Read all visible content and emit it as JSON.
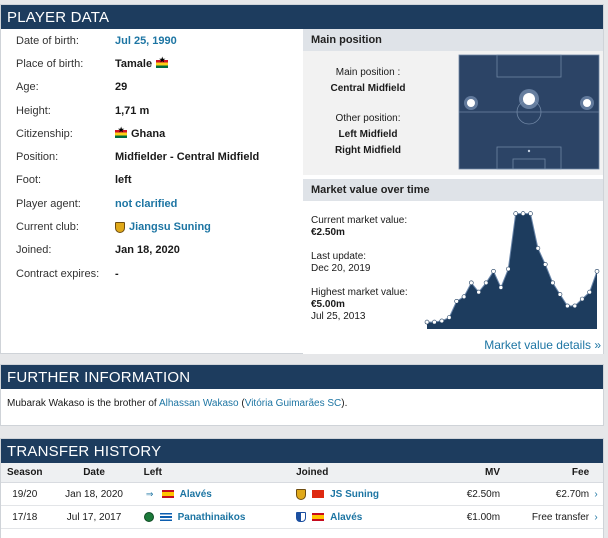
{
  "player_data": {
    "title": "PLAYER DATA",
    "rows": [
      {
        "label": "Date of birth:",
        "value": "Jul 25, 1990"
      },
      {
        "label": "Place of birth:",
        "value": "Tamale"
      },
      {
        "label": "Age:",
        "value": "29"
      },
      {
        "label": "Height:",
        "value": "1,71 m"
      },
      {
        "label": "Citizenship:",
        "value": "Ghana"
      },
      {
        "label": "Position:",
        "value": "Midfielder - Central Midfield"
      },
      {
        "label": "Foot:",
        "value": "left"
      },
      {
        "label": "Player agent:",
        "value": "not clarified"
      },
      {
        "label": "Current club:",
        "value": "Jiangsu Suning"
      },
      {
        "label": "Joined:",
        "value": "Jan 18, 2020"
      },
      {
        "label": "Contract expires:",
        "value": "-"
      }
    ]
  },
  "main_position": {
    "title": "Main position",
    "main_label": "Main position :",
    "main_value": "Central Midfield",
    "other_label": "Other position:",
    "other_values": [
      "Left Midfield",
      "Right Midfield"
    ]
  },
  "market_value": {
    "title": "Market value over time",
    "current_label": "Current market value:",
    "current_value": "€2.50m",
    "update_label": "Last update:",
    "update_value": "Dec 20, 2019",
    "highest_label": "Highest market value:",
    "highest_value": "€5.00m",
    "highest_date": "Jul 25, 2013",
    "details_link": "Market value details »",
    "chart_data": {
      "type": "area",
      "values": [
        0.3,
        0.3,
        0.35,
        0.5,
        1.2,
        1.4,
        2.0,
        1.6,
        2.0,
        2.5,
        1.8,
        2.6,
        5.0,
        5.0,
        5.0,
        3.5,
        2.8,
        2.0,
        1.5,
        1.0,
        1.0,
        1.3,
        1.6,
        2.5
      ],
      "color": "#1d3c5e"
    }
  },
  "further_info": {
    "title": "FURTHER INFORMATION",
    "text_prefix": "Mubarak Wakaso is the brother of ",
    "brother": "Alhassan Wakaso",
    "paren_open": " (",
    "brother_club": "Vitória Guimarães SC",
    "paren_close": ")."
  },
  "transfer_history": {
    "title": "TRANSFER HISTORY",
    "headers": {
      "season": "Season",
      "date": "Date",
      "left": "Left",
      "joined": "Joined",
      "mv": "MV",
      "fee": "Fee"
    },
    "rows": [
      {
        "season": "19/20",
        "date": "Jan 18, 2020",
        "left": "Alavés",
        "joined": "JS Suning",
        "mv": "€2.50m",
        "fee": "€2.70m",
        "arrow": "›"
      },
      {
        "season": "17/18",
        "date": "Jul 17, 2017",
        "left": "Panathinaikos",
        "joined": "Alavés",
        "mv": "€1.00m",
        "fee": "Free transfer",
        "arrow": "›"
      }
    ]
  },
  "colors": {
    "header_bg": "#1d3c5e",
    "link": "#1d75a3",
    "pitch": "#2c4466"
  }
}
